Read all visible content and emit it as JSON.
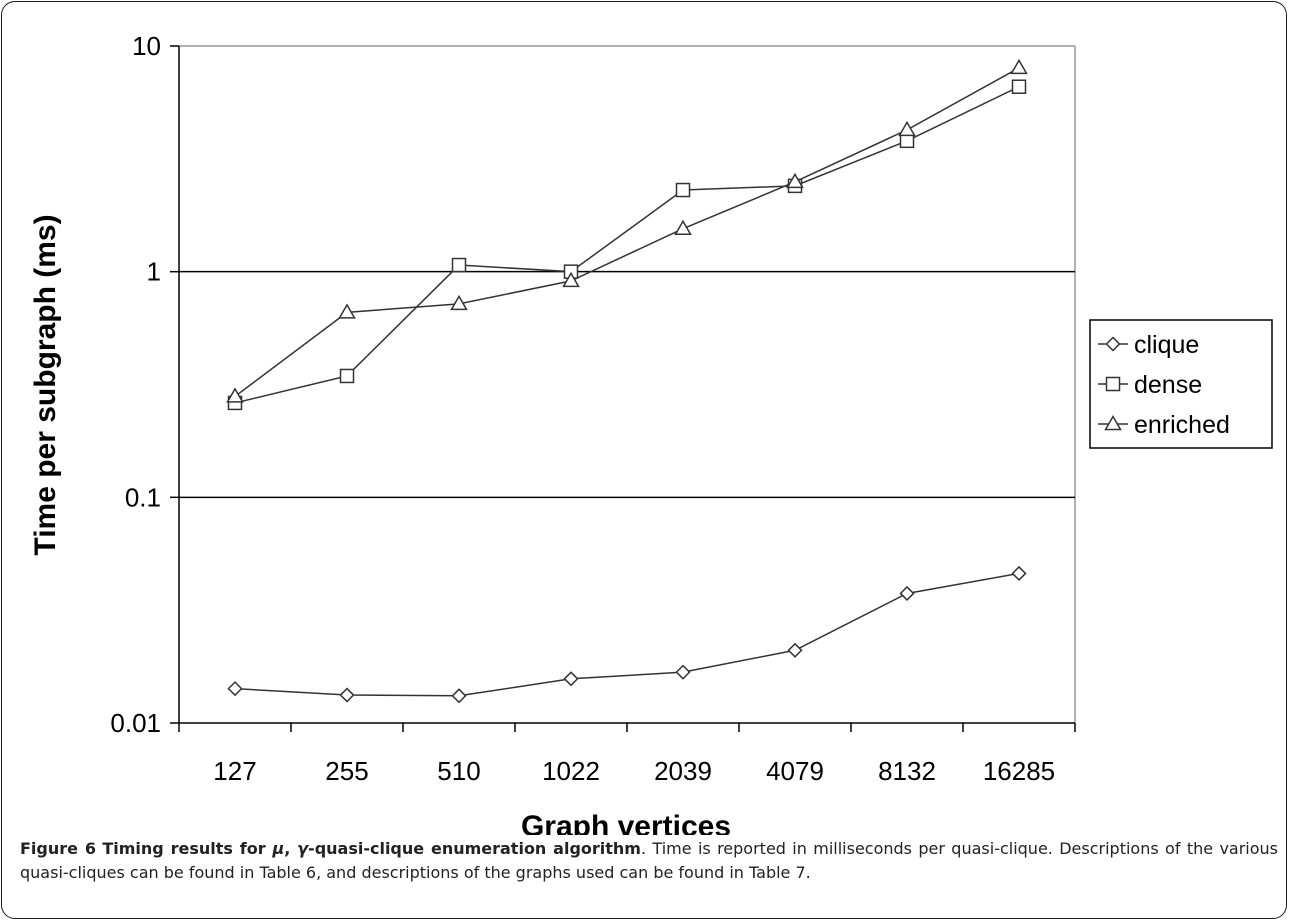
{
  "chart_data": {
    "type": "line",
    "categories": [
      "127",
      "255",
      "510",
      "1022",
      "2039",
      "4079",
      "8132",
      "16285"
    ],
    "series": [
      {
        "name": "clique",
        "marker": "diamond",
        "values": [
          0.0142,
          0.0133,
          0.0132,
          0.0157,
          0.0168,
          0.021,
          0.0375,
          0.046
        ]
      },
      {
        "name": "dense",
        "marker": "square",
        "values": [
          0.262,
          0.345,
          1.07,
          1.0,
          2.3,
          2.4,
          3.8,
          6.6
        ]
      },
      {
        "name": "enriched",
        "marker": "triangle",
        "values": [
          0.28,
          0.66,
          0.72,
          0.91,
          1.55,
          2.5,
          4.25,
          8.0
        ]
      }
    ],
    "xlabel": "Graph vertices",
    "ylabel": "Time per subgraph (ms)",
    "yscale": "log",
    "ylim": [
      0.01,
      10
    ],
    "yticks": [
      "10",
      "1",
      "0.1",
      "0.01"
    ],
    "grid": "horizontal at decades",
    "legend_position": "right"
  },
  "caption": {
    "label": "Figure 6",
    "title_start": "Timing results for ",
    "title_mu": "μ",
    "title_sep": ", ",
    "title_gamma": "γ",
    "title_end": "-quasi-clique enumeration algorithm",
    "body": ". Time is reported in milliseconds per quasi-clique. Descriptions of the various quasi-cliques can be found in Table 6, and descriptions of the graphs used can be found in Table 7."
  },
  "colors": {
    "line": "#333333",
    "frame": "#999999",
    "grid": "#000000"
  }
}
